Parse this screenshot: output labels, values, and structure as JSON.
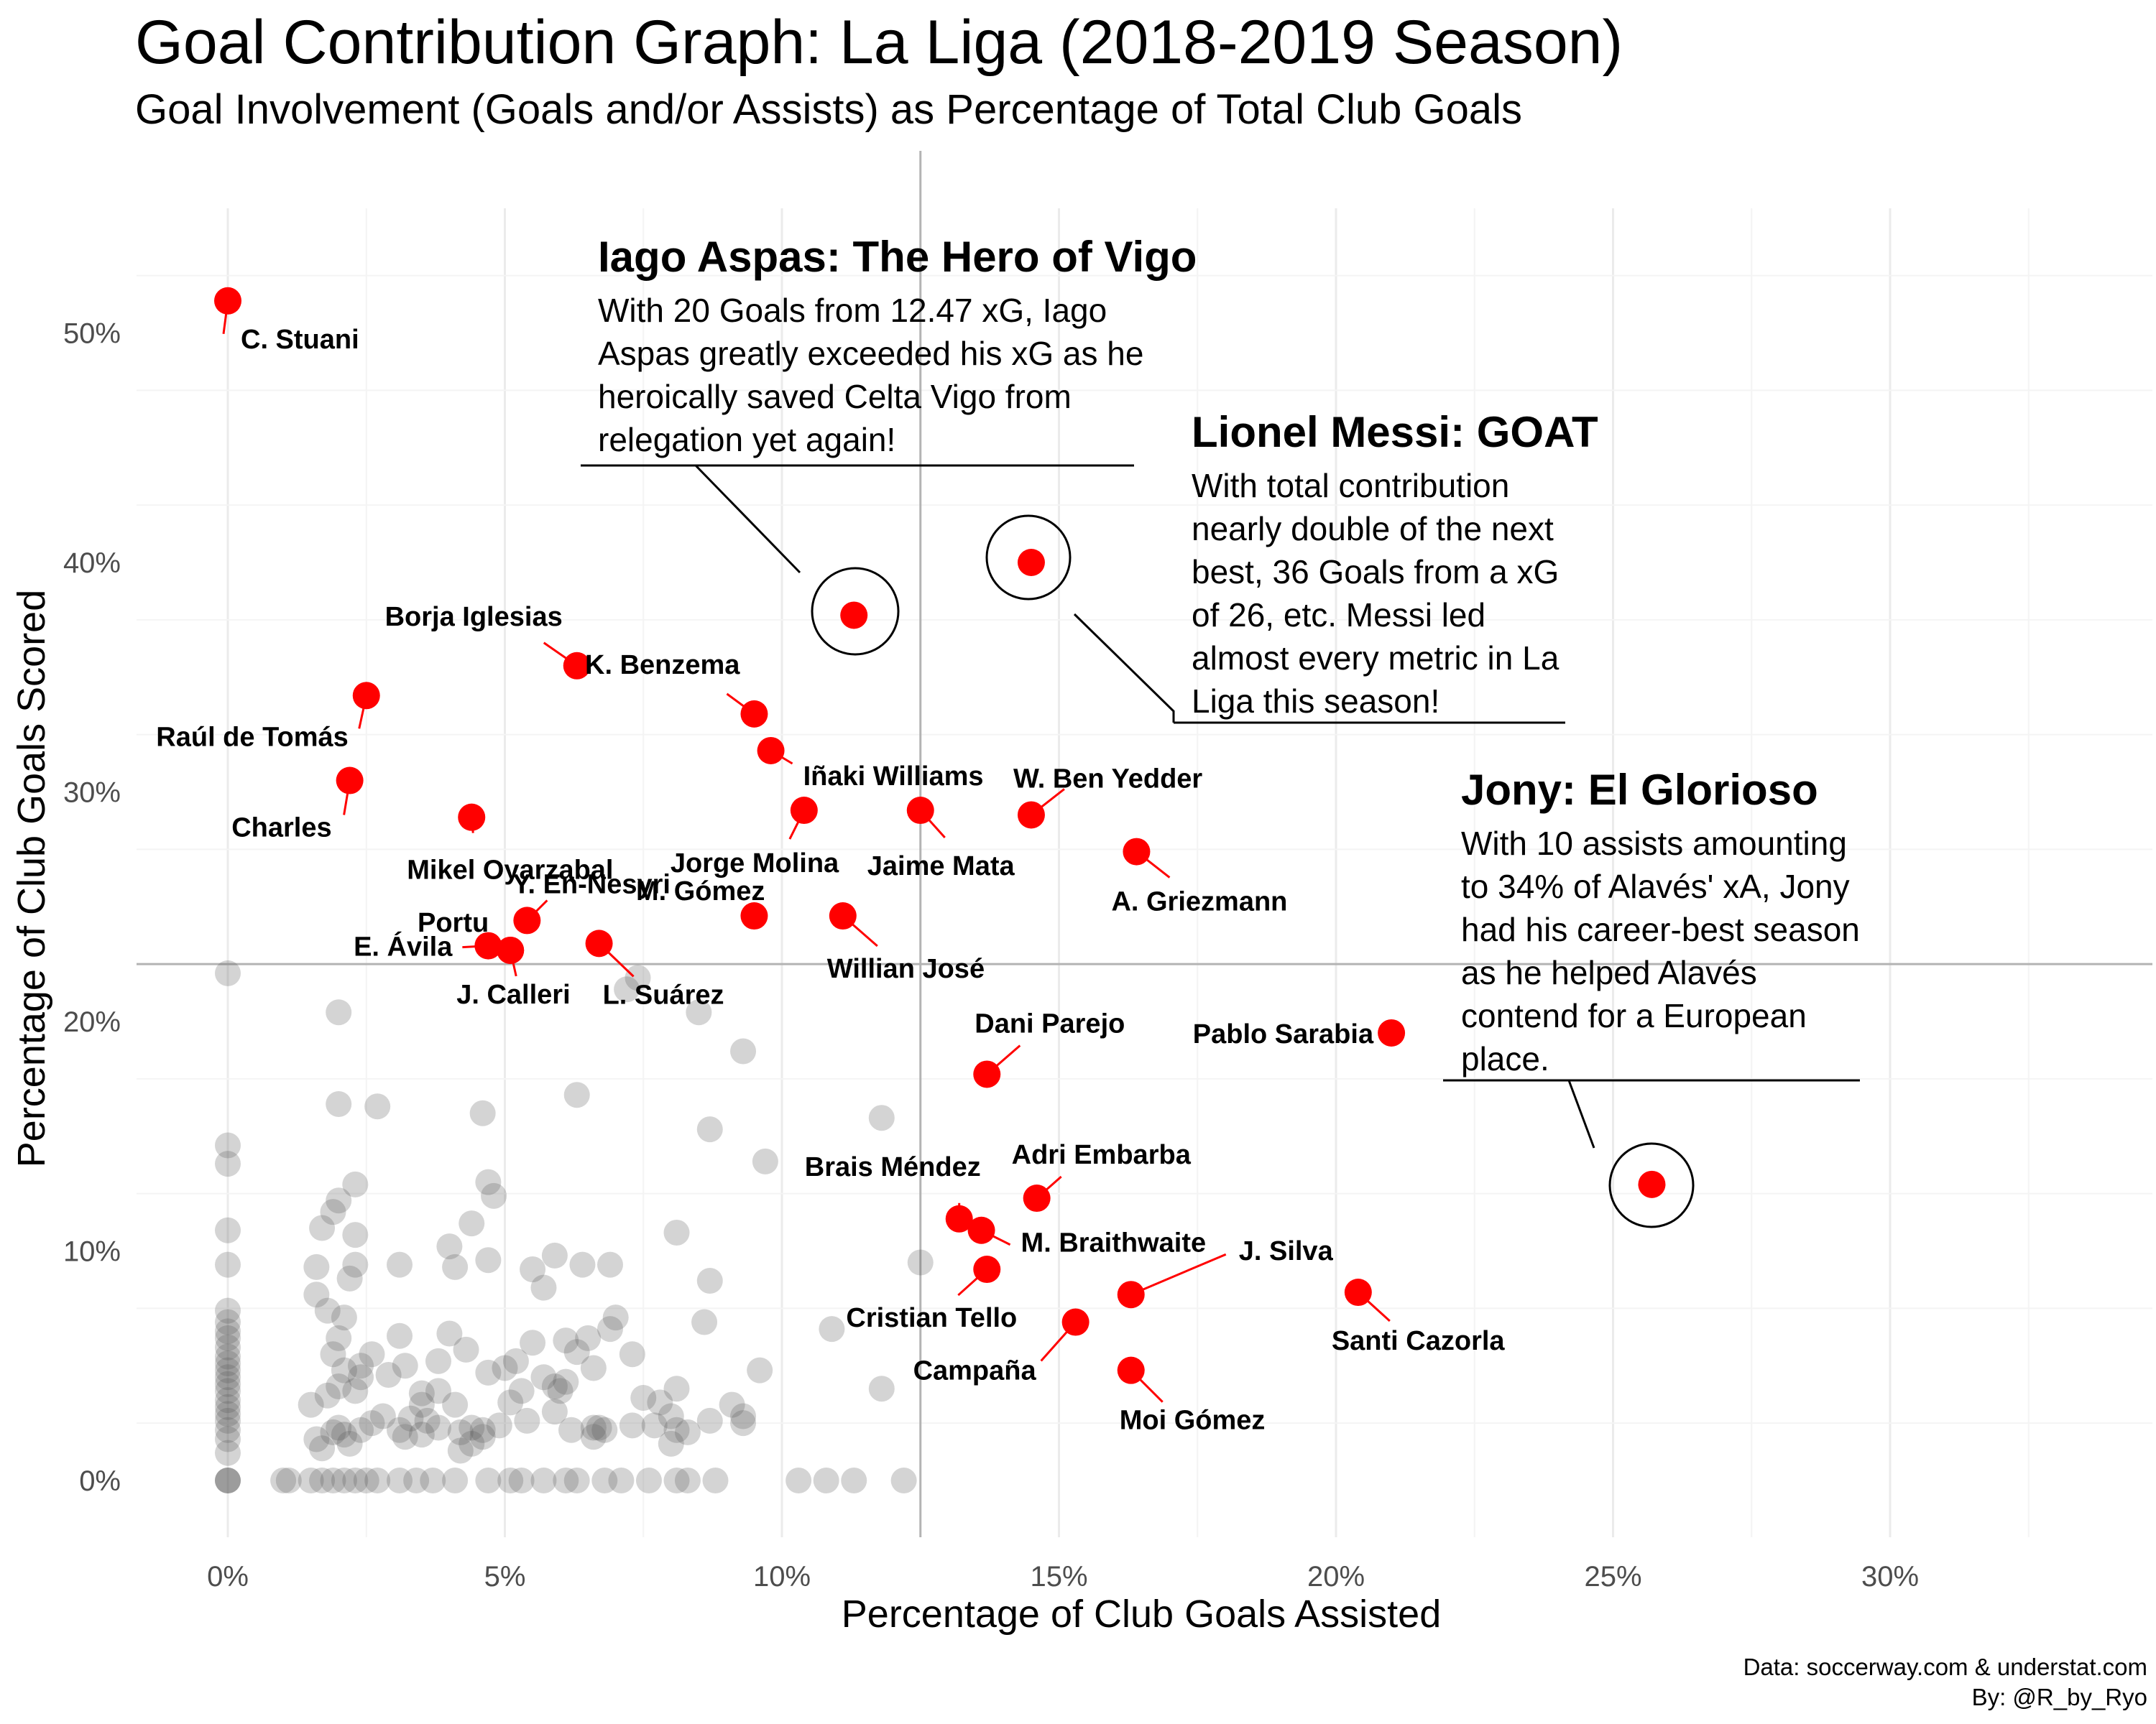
{
  "chart_data": {
    "type": "scatter",
    "title": "Goal Contribution Graph: La Liga (2018-2019 Season)",
    "subtitle": "Goal Involvement (Goals and/or Assists) as Percentage of Total Club Goals",
    "xlabel": "Percentage of Club Goals Assisted",
    "ylabel": "Percentage of Club Goals Scored",
    "xlim": [
      0,
      30
    ],
    "ylim": [
      0,
      50
    ],
    "x_ticks": [
      "0%",
      "5%",
      "10%",
      "15%",
      "20%",
      "25%",
      "30%"
    ],
    "y_ticks": [
      "0%",
      "10%",
      "20%",
      "30%",
      "40%",
      "50%"
    ],
    "grid": true,
    "reference_lines": {
      "x": 12.5,
      "y": 22.5
    },
    "caption": [
      "Data: soccerway.com & understat.com",
      "By: @R_by_Ryo"
    ],
    "colors": {
      "highlight": "#ff0000",
      "background_points": "#555555",
      "reference_line": "#b3b3b3"
    },
    "highlighted": [
      {
        "label": "C. Stuani",
        "x": 0.0,
        "y": 51.4
      },
      {
        "label": "",
        "x": 11.3,
        "y": 37.7
      },
      {
        "label": "",
        "x": 14.5,
        "y": 40.0
      },
      {
        "label": "",
        "x": 25.7,
        "y": 12.9
      },
      {
        "label": "Borja Iglesias",
        "x": 6.3,
        "y": 35.5
      },
      {
        "label": "K. Benzema",
        "x": 9.5,
        "y": 33.4
      },
      {
        "label": "Iñaki Williams",
        "x": 9.8,
        "y": 31.8
      },
      {
        "label": "Raúl de Tomás",
        "x": 2.5,
        "y": 34.2
      },
      {
        "label": "Charles",
        "x": 2.2,
        "y": 30.5
      },
      {
        "label": "Mikel Oyarzabal",
        "x": 4.4,
        "y": 28.9
      },
      {
        "label": "Jorge Molina",
        "x": 10.4,
        "y": 29.2
      },
      {
        "label": "Jaime Mata",
        "x": 12.5,
        "y": 29.2
      },
      {
        "label": "W. Ben Yedder",
        "x": 14.5,
        "y": 29.0
      },
      {
        "label": "A. Griezmann",
        "x": 16.4,
        "y": 27.4
      },
      {
        "label": "Y. En-Nesyri",
        "x": 5.4,
        "y": 24.4
      },
      {
        "label": "Portu",
        "x": 5.1,
        "y": 23.1
      },
      {
        "label": "E. Ávila",
        "x": 4.7,
        "y": 23.3
      },
      {
        "label": "J. Calleri",
        "x": 5.1,
        "y": 23.1
      },
      {
        "label": "L. Suárez",
        "x": 6.7,
        "y": 23.4
      },
      {
        "label": "M. Gómez",
        "x": 9.5,
        "y": 24.6
      },
      {
        "label": "Willian José",
        "x": 11.1,
        "y": 24.6
      },
      {
        "label": "Dani Parejo",
        "x": 13.7,
        "y": 17.7
      },
      {
        "label": "Pablo Sarabia",
        "x": 21.0,
        "y": 19.5
      },
      {
        "label": "Adri Embarba",
        "x": 14.6,
        "y": 12.3
      },
      {
        "label": "Brais Méndez",
        "x": 13.2,
        "y": 11.4
      },
      {
        "label": "M. Braithwaite",
        "x": 13.6,
        "y": 10.9
      },
      {
        "label": "J. Silva",
        "x": 16.3,
        "y": 8.1
      },
      {
        "label": "Cristian Tello",
        "x": 13.7,
        "y": 9.2
      },
      {
        "label": "Santi Cazorla",
        "x": 20.4,
        "y": 8.2
      },
      {
        "label": "Campaña",
        "x": 15.3,
        "y": 6.9
      },
      {
        "label": "Moi Gómez",
        "x": 16.3,
        "y": 4.8
      }
    ],
    "others": [
      [
        0,
        22.1
      ],
      [
        0,
        14.6
      ],
      [
        0,
        13.8
      ],
      [
        0,
        10.9
      ],
      [
        0,
        9.4
      ],
      [
        0,
        7.4
      ],
      [
        0,
        6.9
      ],
      [
        0,
        6.5
      ],
      [
        0,
        6.2
      ],
      [
        0,
        5.8
      ],
      [
        0,
        5.4
      ],
      [
        0,
        5.1
      ],
      [
        0,
        4.8
      ],
      [
        0,
        4.5
      ],
      [
        0,
        4.2
      ],
      [
        0,
        3.9
      ],
      [
        0,
        3.5
      ],
      [
        0,
        3.2
      ],
      [
        0,
        2.9
      ],
      [
        0,
        2.6
      ],
      [
        0,
        2.2
      ],
      [
        0,
        1.8
      ],
      [
        0,
        1.2
      ],
      [
        0,
        0
      ],
      [
        0,
        0
      ],
      [
        0,
        0
      ],
      [
        2.0,
        20.4
      ],
      [
        2.0,
        16.4
      ],
      [
        2.7,
        16.3
      ],
      [
        2.3,
        12.9
      ],
      [
        2.0,
        12.2
      ],
      [
        1.9,
        11.7
      ],
      [
        1.7,
        11.0
      ],
      [
        2.3,
        10.7
      ],
      [
        2.3,
        9.4
      ],
      [
        1.6,
        9.3
      ],
      [
        2.2,
        8.8
      ],
      [
        1.6,
        8.1
      ],
      [
        1.8,
        7.4
      ],
      [
        2.1,
        7.1
      ],
      [
        1.9,
        5.5
      ],
      [
        2.0,
        6.2
      ],
      [
        2.6,
        5.5
      ],
      [
        2.1,
        4.8
      ],
      [
        2.4,
        4.5
      ],
      [
        1.5,
        3.3
      ],
      [
        1.8,
        3.7
      ],
      [
        2.0,
        4.1
      ],
      [
        2.3,
        3.9
      ],
      [
        2.4,
        5.0
      ],
      [
        1.9,
        2.1
      ],
      [
        2.4,
        2.2
      ],
      [
        2.1,
        2.0
      ],
      [
        2.6,
        2.5
      ],
      [
        2.8,
        2.8
      ],
      [
        2.2,
        1.6
      ],
      [
        1.6,
        1.8
      ],
      [
        1.7,
        1.4
      ],
      [
        2.0,
        2.3
      ],
      [
        3.1,
        9.4
      ],
      [
        3.1,
        6.3
      ],
      [
        3.2,
        5.0
      ],
      [
        2.9,
        4.6
      ],
      [
        3.5,
        3.8
      ],
      [
        3.5,
        3.3
      ],
      [
        3.3,
        2.7
      ],
      [
        3.1,
        2.2
      ],
      [
        3.5,
        2.0
      ],
      [
        3.2,
        1.9
      ],
      [
        3.6,
        2.6
      ],
      [
        4.0,
        10.2
      ],
      [
        4.4,
        11.2
      ],
      [
        4.7,
        13.0
      ],
      [
        4.8,
        12.4
      ],
      [
        4.7,
        9.6
      ],
      [
        4.1,
        9.3
      ],
      [
        4.0,
        6.4
      ],
      [
        4.3,
        5.7
      ],
      [
        3.8,
        5.2
      ],
      [
        3.8,
        3.9
      ],
      [
        4.1,
        3.3
      ],
      [
        4.2,
        2.1
      ],
      [
        4.4,
        2.3
      ],
      [
        4.6,
        2.2
      ],
      [
        4.6,
        1.9
      ],
      [
        3.8,
        2.3
      ],
      [
        4.4,
        1.6
      ],
      [
        4.2,
        1.3
      ],
      [
        4.6,
        16.0
      ],
      [
        5.5,
        9.2
      ],
      [
        5.7,
        8.4
      ],
      [
        5.9,
        9.8
      ],
      [
        5.5,
        6.0
      ],
      [
        5.2,
        5.2
      ],
      [
        5.0,
        4.9
      ],
      [
        4.7,
        4.7
      ],
      [
        5.3,
        3.9
      ],
      [
        5.1,
        3.4
      ],
      [
        4.9,
        2.4
      ],
      [
        5.4,
        2.6
      ],
      [
        5.7,
        4.5
      ],
      [
        5.9,
        4.1
      ],
      [
        6.0,
        3.9
      ],
      [
        5.9,
        3.0
      ],
      [
        6.3,
        16.8
      ],
      [
        6.4,
        9.4
      ],
      [
        6.1,
        6.1
      ],
      [
        6.3,
        5.6
      ],
      [
        6.1,
        4.3
      ],
      [
        6.6,
        4.9
      ],
      [
        6.5,
        6.2
      ],
      [
        6.9,
        6.6
      ],
      [
        7.0,
        7.1
      ],
      [
        6.9,
        9.4
      ],
      [
        6.7,
        2.3
      ],
      [
        6.6,
        2.3
      ],
      [
        6.6,
        1.9
      ],
      [
        6.2,
        2.2
      ],
      [
        6.8,
        2.2
      ],
      [
        7.3,
        5.5
      ],
      [
        7.5,
        3.6
      ],
      [
        7.3,
        2.4
      ],
      [
        7.7,
        2.4
      ],
      [
        8.0,
        2.8
      ],
      [
        8.1,
        2.2
      ],
      [
        8.3,
        2.1
      ],
      [
        8.7,
        2.6
      ],
      [
        7.8,
        3.4
      ],
      [
        8.1,
        4.0
      ],
      [
        8.0,
        1.6
      ],
      [
        8.1,
        10.8
      ],
      [
        7.4,
        21.9
      ],
      [
        7.2,
        21.4
      ],
      [
        8.5,
        20.4
      ],
      [
        8.7,
        15.3
      ],
      [
        8.7,
        8.7
      ],
      [
        8.6,
        6.9
      ],
      [
        9.3,
        18.7
      ],
      [
        9.7,
        13.9
      ],
      [
        9.1,
        3.3
      ],
      [
        9.3,
        2.5
      ],
      [
        9.3,
        2.8
      ],
      [
        9.6,
        4.8
      ],
      [
        10.9,
        6.6
      ],
      [
        11.8,
        15.8
      ],
      [
        11.8,
        4.0
      ],
      [
        12.5,
        9.5
      ],
      [
        1.0,
        0
      ],
      [
        1.1,
        0
      ],
      [
        1.5,
        0
      ],
      [
        1.7,
        0
      ],
      [
        1.9,
        0
      ],
      [
        2.1,
        0
      ],
      [
        2.3,
        0
      ],
      [
        2.5,
        0
      ],
      [
        2.7,
        0
      ],
      [
        3.1,
        0
      ],
      [
        3.4,
        0
      ],
      [
        3.7,
        0
      ],
      [
        4.1,
        0
      ],
      [
        4.7,
        0
      ],
      [
        5.1,
        0
      ],
      [
        5.3,
        0
      ],
      [
        5.7,
        0
      ],
      [
        6.1,
        0
      ],
      [
        6.3,
        0
      ],
      [
        6.8,
        0
      ],
      [
        7.1,
        0
      ],
      [
        7.6,
        0
      ],
      [
        8.1,
        0
      ],
      [
        8.3,
        0
      ],
      [
        8.8,
        0
      ],
      [
        10.3,
        0
      ],
      [
        10.8,
        0
      ],
      [
        11.3,
        0
      ],
      [
        12.2,
        0
      ]
    ],
    "annotations": [
      {
        "title": "Iago Aspas: The Hero of Vigo",
        "lines": [
          "With 20 Goals from 12.47 xG, Iago",
          "Aspas greatly exceeded his xG as he",
          "heroically saved Celta Vigo from",
          "relegation yet again!"
        ]
      },
      {
        "title": "Lionel Messi: GOAT",
        "lines": [
          "With total contribution",
          "nearly double of the next",
          "best, 36 Goals from a xG",
          "of 26, etc. Messi led",
          "almost every metric in La",
          "Liga this season!"
        ]
      },
      {
        "title": "Jony: El Glorioso",
        "lines": [
          "With 10 assists amounting",
          "to 34% of Alavés' xA, Jony",
          "had his career-best season",
          "as he helped Alavés",
          "contend for a European",
          "place."
        ]
      }
    ]
  }
}
